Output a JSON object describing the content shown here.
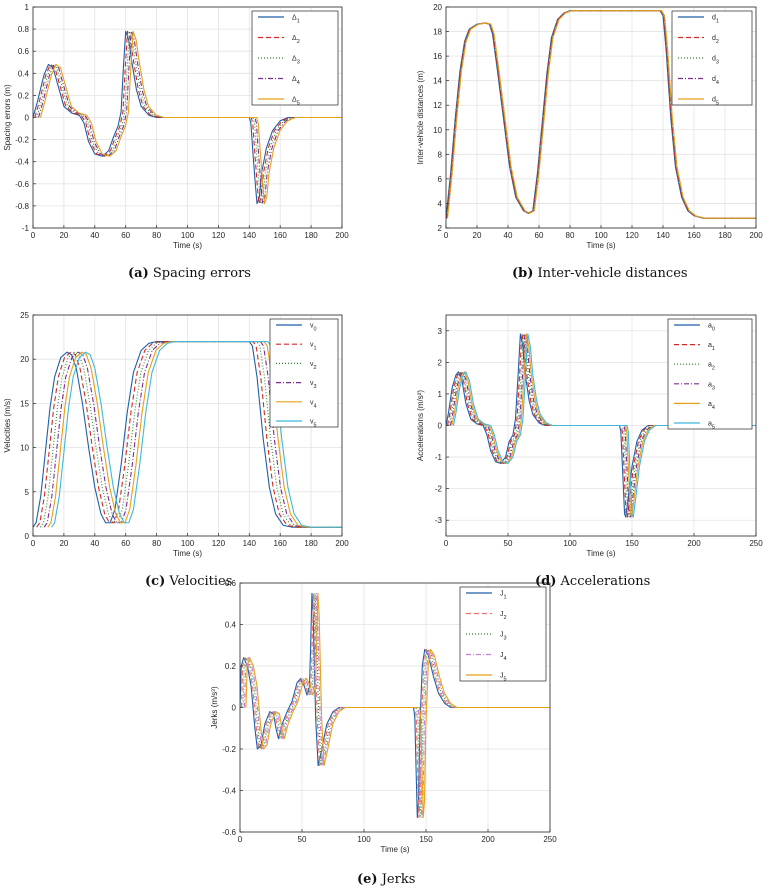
{
  "chart_data": [
    {
      "type": "line",
      "caption_letter": "(a)",
      "caption_text": "Spacing errors",
      "xlabel": "Time (s)",
      "ylabel": "Spacing errors (m)",
      "xlim": [
        0,
        200
      ],
      "ylim": [
        -1,
        1
      ],
      "xticks": [
        0,
        20,
        40,
        60,
        80,
        100,
        120,
        140,
        160,
        180,
        200
      ],
      "yticks": [
        -1,
        -0.8,
        -0.6,
        -0.4,
        -0.2,
        0,
        0.2,
        0.4,
        0.6,
        0.8,
        1
      ],
      "yticklabels": [
        "-1",
        "-0.8",
        "-0.6",
        "-0.4",
        "-0.2",
        "0",
        "0.2",
        "0.4",
        "0.6",
        "0.8",
        "1"
      ],
      "grid": true,
      "legend_position": "top-right",
      "colors": [
        "#1f5fa8",
        "#d62728",
        "#2e8b2e",
        "#7b2d8e",
        "#e6a117"
      ],
      "dashes": [
        "",
        "5,3",
        "1,2",
        "5,2,1,2",
        ""
      ],
      "series_names": [
        [
          "Δ",
          "1"
        ],
        [
          "Δ",
          "2"
        ],
        [
          "Δ",
          "3"
        ],
        [
          "Δ",
          "4"
        ],
        [
          "Δ",
          "5"
        ]
      ],
      "series_shift": 1.2,
      "base": [
        [
          0,
          0
        ],
        [
          3,
          0.15
        ],
        [
          7,
          0.38
        ],
        [
          10,
          0.48
        ],
        [
          13,
          0.45
        ],
        [
          16,
          0.3
        ],
        [
          20,
          0.1
        ],
        [
          25,
          0.04
        ],
        [
          30,
          0.02
        ],
        [
          33,
          -0.05
        ],
        [
          36,
          -0.22
        ],
        [
          40,
          -0.33
        ],
        [
          45,
          -0.35
        ],
        [
          49,
          -0.3
        ],
        [
          52,
          -0.18
        ],
        [
          55,
          -0.08
        ],
        [
          57,
          0.05
        ],
        [
          58.5,
          0.45
        ],
        [
          60,
          0.78
        ],
        [
          62,
          0.7
        ],
        [
          64,
          0.5
        ],
        [
          67,
          0.25
        ],
        [
          70,
          0.1
        ],
        [
          75,
          0.02
        ],
        [
          80,
          0
        ],
        [
          140,
          0
        ],
        [
          141,
          -0.05
        ],
        [
          142.5,
          -0.35
        ],
        [
          144,
          -0.62
        ],
        [
          145,
          -0.78
        ],
        [
          146.5,
          -0.72
        ],
        [
          148,
          -0.5
        ],
        [
          151,
          -0.28
        ],
        [
          155,
          -0.12
        ],
        [
          160,
          -0.03
        ],
        [
          165,
          0
        ],
        [
          200,
          0
        ]
      ]
    },
    {
      "type": "line",
      "caption_letter": "(b)",
      "caption_text": "Inter-vehicle distances",
      "xlabel": "Time (s)",
      "ylabel": "Inter-vehicle distances (m)",
      "xlim": [
        0,
        200
      ],
      "ylim": [
        2,
        20
      ],
      "xticks": [
        0,
        20,
        40,
        60,
        80,
        100,
        120,
        140,
        160,
        180,
        200
      ],
      "yticks": [
        2,
        4,
        6,
        8,
        10,
        12,
        14,
        16,
        18,
        20
      ],
      "yticklabels": [
        "2",
        "4",
        "6",
        "8",
        "10",
        "12",
        "14",
        "16",
        "18",
        "20"
      ],
      "grid": true,
      "legend_position": "top-right",
      "colors": [
        "#1f5fa8",
        "#d62728",
        "#2e8b2e",
        "#7b2d8e",
        "#e6a117"
      ],
      "dashes": [
        "",
        "5,3",
        "1,2",
        "5,2,1,2",
        ""
      ],
      "series_names": [
        [
          "d",
          "1"
        ],
        [
          "d",
          "2"
        ],
        [
          "d",
          "3"
        ],
        [
          "d",
          "4"
        ],
        [
          "d",
          "5"
        ]
      ],
      "series_shift": 0.25,
      "base": [
        [
          0,
          2.8
        ],
        [
          3,
          6.5
        ],
        [
          6,
          11
        ],
        [
          9,
          14.8
        ],
        [
          12,
          17.2
        ],
        [
          15,
          18.2
        ],
        [
          20,
          18.6
        ],
        [
          25,
          18.7
        ],
        [
          28,
          18.6
        ],
        [
          30,
          17.8
        ],
        [
          33,
          15
        ],
        [
          37,
          11
        ],
        [
          41,
          7
        ],
        [
          45,
          4.5
        ],
        [
          50,
          3.4
        ],
        [
          53,
          3.2
        ],
        [
          56,
          3.4
        ],
        [
          59,
          6.5
        ],
        [
          62,
          10.5
        ],
        [
          65,
          14.5
        ],
        [
          68,
          17.5
        ],
        [
          72,
          19
        ],
        [
          76,
          19.5
        ],
        [
          80,
          19.7
        ],
        [
          138,
          19.7
        ],
        [
          140,
          19.3
        ],
        [
          142,
          16.5
        ],
        [
          145,
          11
        ],
        [
          148,
          7
        ],
        [
          152,
          4.5
        ],
        [
          156,
          3.4
        ],
        [
          160,
          3
        ],
        [
          166,
          2.8
        ],
        [
          200,
          2.8
        ]
      ]
    },
    {
      "type": "line",
      "caption_letter": "(c)",
      "caption_text": "Velocities",
      "xlabel": "Time (s)",
      "ylabel": "Velocities (m/s)",
      "xlim": [
        0,
        200
      ],
      "ylim": [
        0,
        25
      ],
      "xticks": [
        0,
        20,
        40,
        60,
        80,
        100,
        120,
        140,
        160,
        180,
        200
      ],
      "yticks": [
        0,
        5,
        10,
        15,
        20,
        25
      ],
      "yticklabels": [
        "0",
        "5",
        "10",
        "15",
        "20",
        "25"
      ],
      "grid": true,
      "legend_position": "top-right",
      "colors": [
        "#1f5fa8",
        "#d62728",
        "#2e8b2e",
        "#7b2d8e",
        "#e6a117",
        "#3fb8d9"
      ],
      "dashes": [
        "",
        "5,3",
        "1,2",
        "5,2,1,2",
        "",
        ""
      ],
      "series_names": [
        [
          "v",
          "0"
        ],
        [
          "v",
          "1"
        ],
        [
          "v",
          "2"
        ],
        [
          "v",
          "3"
        ],
        [
          "v",
          "4"
        ],
        [
          "v",
          "5"
        ]
      ],
      "series_shift": 2.4,
      "base": [
        [
          0,
          1
        ],
        [
          2,
          1.5
        ],
        [
          5,
          4.5
        ],
        [
          8,
          9.5
        ],
        [
          11,
          14.5
        ],
        [
          14,
          18
        ],
        [
          18,
          20.2
        ],
        [
          22,
          20.8
        ],
        [
          25,
          20.5
        ],
        [
          28,
          19
        ],
        [
          32,
          15
        ],
        [
          36,
          10
        ],
        [
          40,
          5.5
        ],
        [
          44,
          2.5
        ],
        [
          47,
          1.5
        ],
        [
          50,
          1.5
        ],
        [
          53,
          3
        ],
        [
          57,
          8
        ],
        [
          61,
          14
        ],
        [
          65,
          18.5
        ],
        [
          70,
          21
        ],
        [
          75,
          21.8
        ],
        [
          80,
          22
        ],
        [
          140,
          22
        ],
        [
          142,
          21.5
        ],
        [
          145,
          18
        ],
        [
          149,
          11
        ],
        [
          153,
          5.5
        ],
        [
          157,
          2.5
        ],
        [
          162,
          1.2
        ],
        [
          168,
          1
        ],
        [
          200,
          1
        ]
      ]
    },
    {
      "type": "line",
      "caption_letter": "(d)",
      "caption_text": "Accelerations",
      "xlabel": "Time (s)",
      "ylabel": "Accelerations (m/s²)",
      "xlim": [
        0,
        250
      ],
      "ylim": [
        -3.5,
        3.5
      ],
      "xticks": [
        0,
        50,
        100,
        150,
        200,
        250
      ],
      "yticks": [
        -3,
        -2,
        -1,
        0,
        1,
        2,
        3
      ],
      "yticklabels": [
        "-3",
        "-2",
        "-1",
        "0",
        "1",
        "2",
        "3"
      ],
      "grid": true,
      "legend_position": "top-right",
      "colors": [
        "#1f5fa8",
        "#d62728",
        "#2e8b2e",
        "#7b2d8e",
        "#e6a117",
        "#3fb8d9"
      ],
      "dashes": [
        "",
        "5,3",
        "1,2",
        "5,2,1,2",
        "",
        ""
      ],
      "series_names": [
        [
          "a",
          "0"
        ],
        [
          "a",
          "1"
        ],
        [
          "a",
          "2"
        ],
        [
          "a",
          "3"
        ],
        [
          "a",
          "4"
        ],
        [
          "a",
          "5"
        ]
      ],
      "series_shift": 1.2,
      "base": [
        [
          0,
          0
        ],
        [
          2,
          0.4
        ],
        [
          5,
          1.2
        ],
        [
          8,
          1.6
        ],
        [
          10,
          1.7
        ],
        [
          13,
          1.4
        ],
        [
          16,
          0.7
        ],
        [
          20,
          0.2
        ],
        [
          25,
          0.05
        ],
        [
          30,
          0
        ],
        [
          33,
          -0.3
        ],
        [
          36,
          -0.8
        ],
        [
          40,
          -1.15
        ],
        [
          44,
          -1.2
        ],
        [
          48,
          -1
        ],
        [
          51,
          -0.5
        ],
        [
          54,
          -0.3
        ],
        [
          56,
          0.2
        ],
        [
          58,
          1.5
        ],
        [
          60,
          2.9
        ],
        [
          62,
          2.5
        ],
        [
          64,
          1.6
        ],
        [
          67,
          0.8
        ],
        [
          70,
          0.35
        ],
        [
          75,
          0.08
        ],
        [
          80,
          0
        ],
        [
          140,
          0
        ],
        [
          141,
          -0.2
        ],
        [
          142.5,
          -1.5
        ],
        [
          144,
          -2.8
        ],
        [
          145,
          -2.9
        ],
        [
          147,
          -2.3
        ],
        [
          150,
          -1.3
        ],
        [
          154,
          -0.5
        ],
        [
          158,
          -0.15
        ],
        [
          163,
          0
        ],
        [
          250,
          0
        ]
      ]
    },
    {
      "type": "line",
      "caption_letter": "(e)",
      "caption_text": "Jerks",
      "xlabel": "Time (s)",
      "ylabel": "Jerks (m/s³)",
      "xlim": [
        0,
        250
      ],
      "ylim": [
        -0.6,
        0.6
      ],
      "xticks": [
        0,
        50,
        100,
        150,
        200,
        250
      ],
      "yticks": [
        -0.6,
        -0.4,
        -0.2,
        0,
        0.2,
        0.4,
        0.6
      ],
      "yticklabels": [
        "-0.6",
        "-0.4",
        "-0.2",
        "0",
        "0.2",
        "0.4",
        "0.6"
      ],
      "grid": true,
      "legend_position": "top-right",
      "colors": [
        "#1f5fa8",
        "#f07070",
        "#2e8b2e",
        "#c77dd6",
        "#e6a117"
      ],
      "dashes": [
        "",
        "5,3",
        "1,2",
        "5,2,1,2",
        ""
      ],
      "series_names": [
        [
          "J",
          "1"
        ],
        [
          "J",
          "2"
        ],
        [
          "J",
          "3"
        ],
        [
          "J",
          "4"
        ],
        [
          "J",
          "5"
        ]
      ],
      "series_shift": 1.2,
      "base": [
        [
          0,
          0
        ],
        [
          1,
          0.2
        ],
        [
          3,
          0.24
        ],
        [
          6,
          0.2
        ],
        [
          9,
          0.1
        ],
        [
          12,
          -0.1
        ],
        [
          14,
          -0.2
        ],
        [
          17,
          -0.18
        ],
        [
          20,
          -0.08
        ],
        [
          24,
          -0.02
        ],
        [
          27,
          -0.03
        ],
        [
          29,
          -0.1
        ],
        [
          31,
          -0.15
        ],
        [
          34,
          -0.08
        ],
        [
          38,
          -0.02
        ],
        [
          42,
          0.03
        ],
        [
          46,
          0.12
        ],
        [
          49,
          0.14
        ],
        [
          52,
          0.1
        ],
        [
          54,
          0.06
        ],
        [
          56,
          0.1
        ],
        [
          57,
          0.3
        ],
        [
          58,
          0.55
        ],
        [
          59,
          0.45
        ],
        [
          61,
          -0.05
        ],
        [
          63,
          -0.28
        ],
        [
          66,
          -0.2
        ],
        [
          70,
          -0.08
        ],
        [
          75,
          -0.02
        ],
        [
          80,
          0
        ],
        [
          140,
          0
        ],
        [
          141,
          -0.05
        ],
        [
          142,
          -0.3
        ],
        [
          143,
          -0.53
        ],
        [
          144,
          -0.45
        ],
        [
          145,
          -0.1
        ],
        [
          147,
          0.2
        ],
        [
          149,
          0.28
        ],
        [
          152,
          0.25
        ],
        [
          156,
          0.15
        ],
        [
          160,
          0.07
        ],
        [
          165,
          0.02
        ],
        [
          170,
          0
        ],
        [
          250,
          0
        ]
      ]
    }
  ]
}
